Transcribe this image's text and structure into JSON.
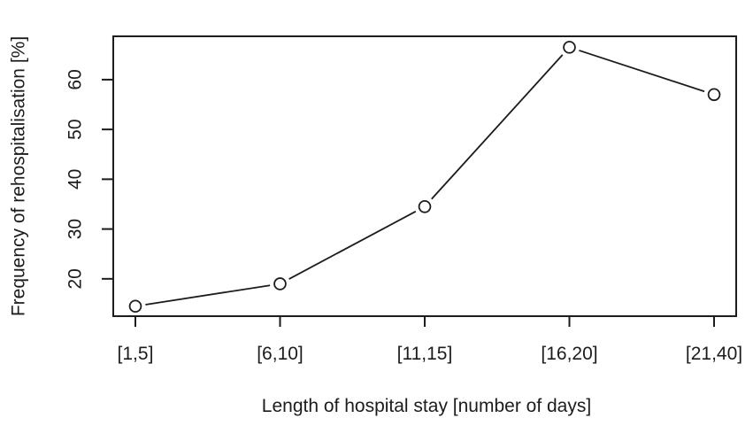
{
  "chart_data": {
    "type": "line",
    "title": "",
    "categories": [
      "[1,5]",
      "[6,10]",
      "[11,15]",
      "[16,20]",
      "[21,40]"
    ],
    "values": [
      14.5,
      19,
      34.5,
      66.5,
      57
    ],
    "xlabel": "Length of hospital stay [number of days]",
    "ylabel": "Frequency of rehospitalisation [%]",
    "y_ticks": [
      20,
      30,
      40,
      50,
      60
    ],
    "ylim": [
      12.5,
      68.7
    ],
    "marker": "open-circle",
    "line_color": "#1c1c1c",
    "text_color": "#1c1c1c",
    "background": "#ffffff",
    "grid": false,
    "legend": "none"
  }
}
